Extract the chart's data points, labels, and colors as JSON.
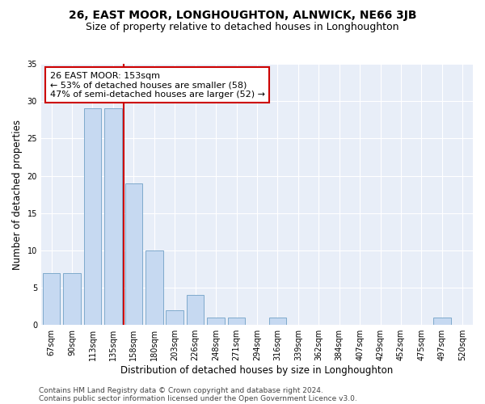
{
  "title1": "26, EAST MOOR, LONGHOUGHTON, ALNWICK, NE66 3JB",
  "title2": "Size of property relative to detached houses in Longhoughton",
  "xlabel": "Distribution of detached houses by size in Longhoughton",
  "ylabel": "Number of detached properties",
  "categories": [
    "67sqm",
    "90sqm",
    "113sqm",
    "135sqm",
    "158sqm",
    "180sqm",
    "203sqm",
    "226sqm",
    "248sqm",
    "271sqm",
    "294sqm",
    "316sqm",
    "339sqm",
    "362sqm",
    "384sqm",
    "407sqm",
    "429sqm",
    "452sqm",
    "475sqm",
    "497sqm",
    "520sqm"
  ],
  "values": [
    7,
    7,
    29,
    29,
    19,
    10,
    2,
    4,
    1,
    1,
    0,
    1,
    0,
    0,
    0,
    0,
    0,
    0,
    0,
    1,
    0
  ],
  "bar_color": "#c6d9f1",
  "bar_edge_color": "#7faacc",
  "ref_line_color": "#cc0000",
  "annotation_text": "26 EAST MOOR: 153sqm\n← 53% of detached houses are smaller (58)\n47% of semi-detached houses are larger (52) →",
  "annotation_box_color": "#ffffff",
  "annotation_box_edge": "#cc0000",
  "ylim": [
    0,
    35
  ],
  "yticks": [
    0,
    5,
    10,
    15,
    20,
    25,
    30,
    35
  ],
  "footer1": "Contains HM Land Registry data © Crown copyright and database right 2024.",
  "footer2": "Contains public sector information licensed under the Open Government Licence v3.0.",
  "background_color": "#e8eef8",
  "title1_fontsize": 10,
  "title2_fontsize": 9,
  "xlabel_fontsize": 8.5,
  "ylabel_fontsize": 8.5,
  "tick_fontsize": 7,
  "annotation_fontsize": 8,
  "footer_fontsize": 6.5
}
